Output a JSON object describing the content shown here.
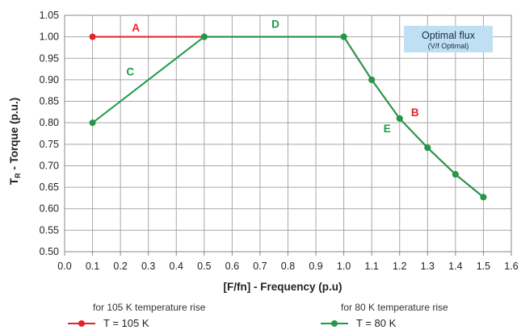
{
  "chart_data": {
    "type": "line",
    "xlabel": "[F/fn] - Frequency (p.u)",
    "ylabel": "T",
    "ylabel_sub": "R",
    "ylabel_rest": " - Torque (p.u.)",
    "xlim": [
      0.0,
      1.6
    ],
    "ylim": [
      0.5,
      1.05
    ],
    "xticks": [
      "0.0",
      "0.1",
      "0.2",
      "0.3",
      "0.4",
      "0.5",
      "0.6",
      "0.7",
      "0.8",
      "0.9",
      "1.0",
      "1.1",
      "1.2",
      "1.3",
      "1.4",
      "1.5",
      "1.6"
    ],
    "yticks": [
      "0.50",
      "0.55",
      "0.60",
      "0.65",
      "0.70",
      "0.75",
      "0.80",
      "0.85",
      "0.90",
      "0.95",
      "1.00",
      "1.05"
    ],
    "grid": true,
    "series": [
      {
        "name": "T = 105 K",
        "color": "#e8202a",
        "x": [
          0.1,
          0.5,
          1.0,
          1.1,
          1.2,
          1.3,
          1.4,
          1.5
        ],
        "y": [
          1.0,
          1.0,
          1.0,
          0.9,
          0.81,
          0.742,
          0.68,
          0.627
        ]
      },
      {
        "name": "T = 80 K",
        "color": "#1f9a4a",
        "x": [
          0.1,
          0.5,
          1.0,
          1.1,
          1.2,
          1.3,
          1.4,
          1.5
        ],
        "y": [
          0.8,
          1.0,
          1.0,
          0.9,
          0.81,
          0.742,
          0.68,
          0.627
        ]
      }
    ],
    "annotations": [
      {
        "text": "A",
        "color": "#e8202a",
        "x": 0.255,
        "y": 1.022
      },
      {
        "text": "D",
        "color": "#1f9a4a",
        "x": 0.755,
        "y": 1.03
      },
      {
        "text": "C",
        "color": "#1f9a4a",
        "x": 0.235,
        "y": 0.92
      },
      {
        "text": "B",
        "color": "#e8202a",
        "x": 1.255,
        "y": 0.825
      },
      {
        "text": "E",
        "color": "#1f9a4a",
        "x": 1.155,
        "y": 0.787
      }
    ],
    "info_box": {
      "title": "Optimal flux",
      "subtitle": "(V/f Optimal)",
      "fill": "#bfe0f2"
    }
  },
  "legend": {
    "note_105": "for 105 K temperature rise",
    "note_80": "for 80 K temperature rise",
    "item_105": "T = 105 K",
    "item_80": "T = 80 K"
  }
}
